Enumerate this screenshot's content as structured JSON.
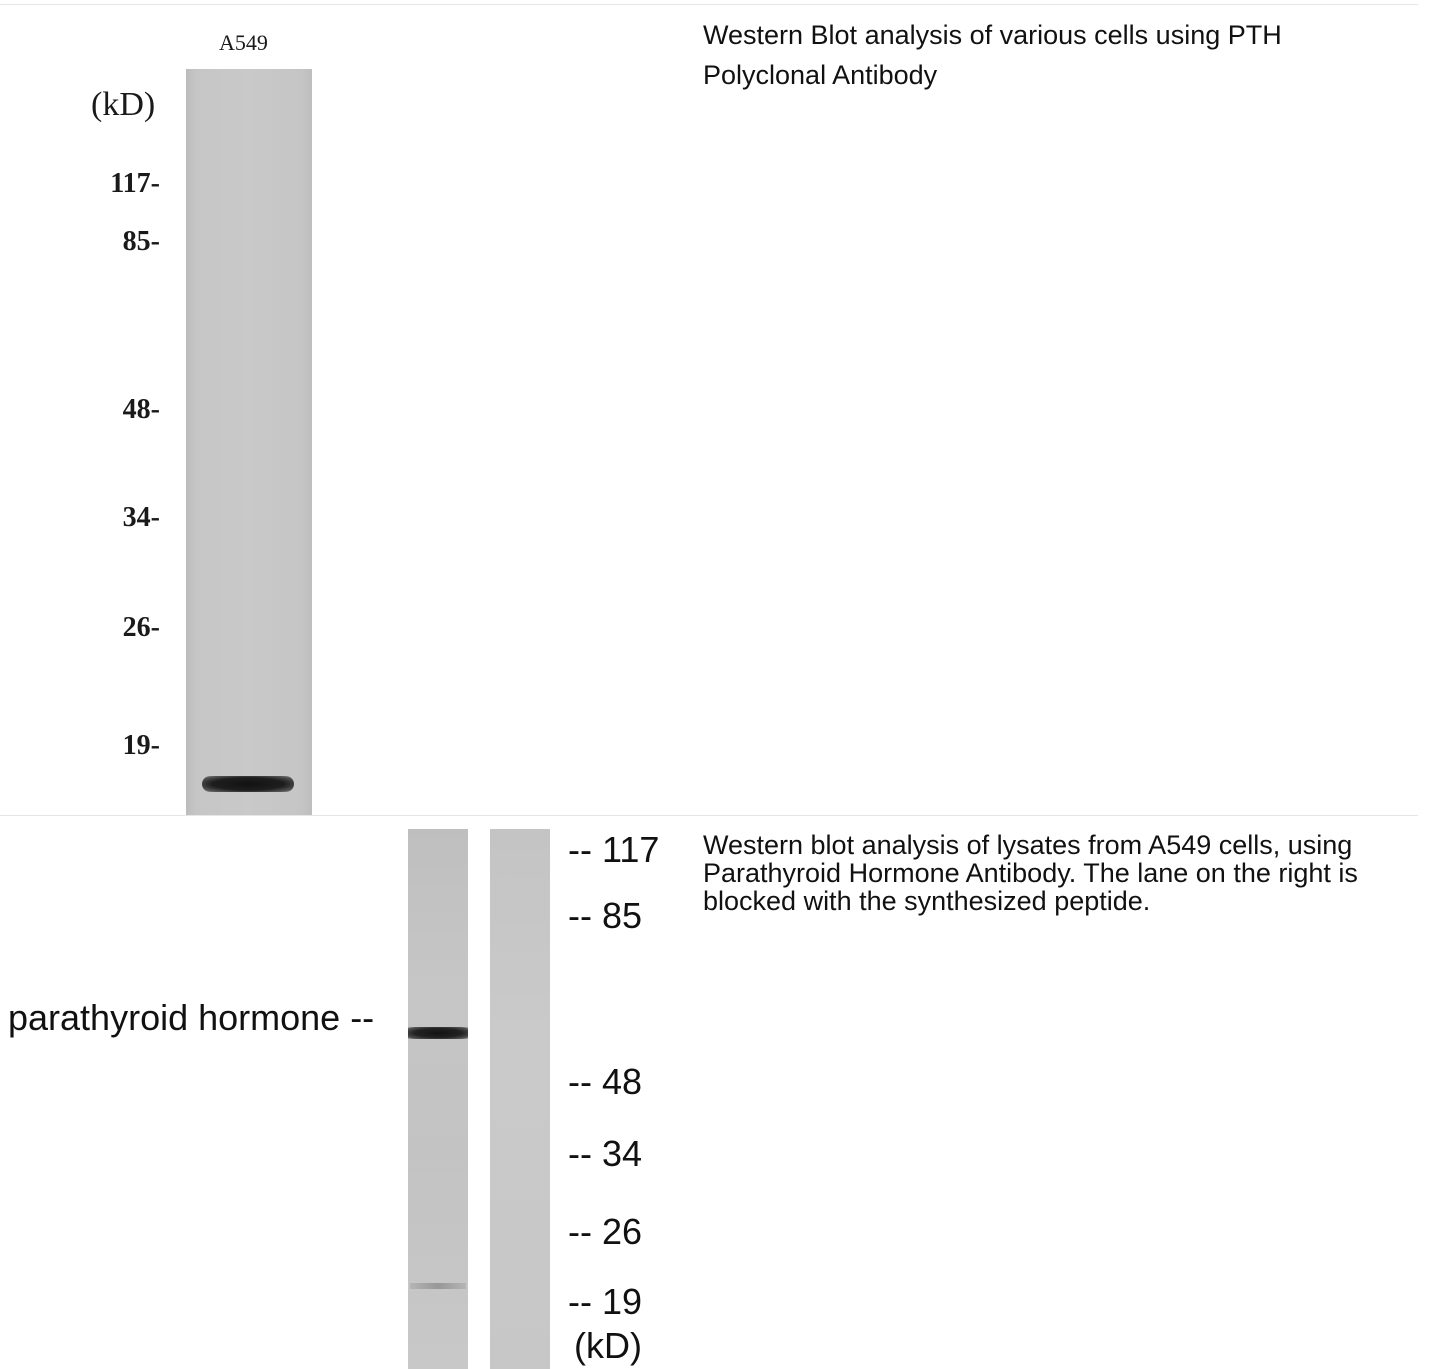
{
  "top_panel": {
    "lane_label": "A549",
    "unit_label": "(kD)",
    "markers": [
      "117-",
      "85-",
      "48-",
      "34-",
      "26-",
      "19-"
    ],
    "caption": "Western Blot analysis of various cells using PTH Polyclonal Antibody"
  },
  "bottom_panel": {
    "protein_label": "parathyroid hormone --",
    "markers": [
      "-- 117",
      "-- 85",
      "-- 48",
      "-- 34",
      "-- 26",
      "-- 19"
    ],
    "unit_label": "(kD)",
    "caption": "Western blot analysis of lysates from A549 cells, using Parathyroid Hormone Antibody. The lane on the right is blocked with the synthesized peptide."
  }
}
